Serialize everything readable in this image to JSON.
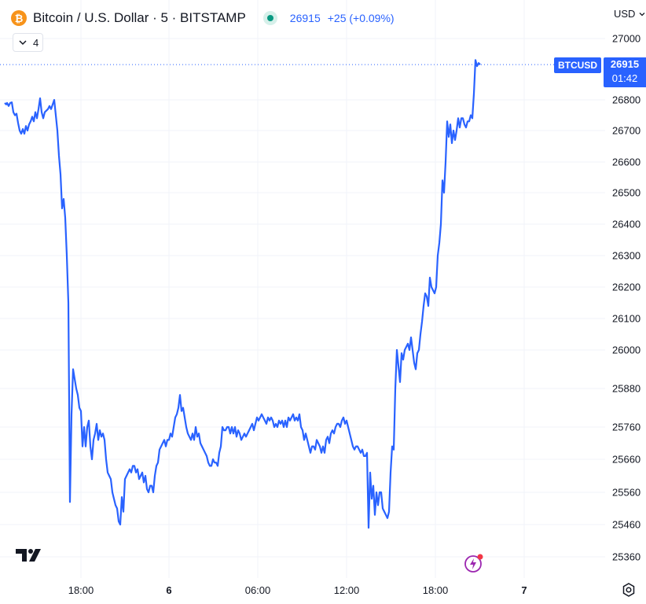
{
  "header": {
    "coin_symbol": "₿",
    "title": "Bitcoin / U.S. Dollar · 5 · BITSTAMP",
    "last_price": "26915",
    "change": "+25 (+0.09%)",
    "indicators_count": "4"
  },
  "currency_selector": "USD",
  "price_tag": {
    "symbol": "BTCUSD",
    "price": "26915",
    "countdown": "01:42"
  },
  "colors": {
    "line": "#2962ff",
    "grid": "#f0f3fa",
    "live_status": "#089981",
    "coin": "#f7931a"
  },
  "icons": [
    "bitcoin-logo-icon",
    "live-status-icon",
    "chevron-down-icon",
    "tradingview-logo-icon",
    "flash-icon",
    "settings-icon"
  ],
  "chart_data": {
    "type": "line",
    "title": "",
    "xlabel": "",
    "ylabel": "",
    "grid": true,
    "x_ticks": [
      "18:00",
      "6",
      "06:00",
      "12:00",
      "18:00",
      "7"
    ],
    "y_ticks": [
      27000,
      26800,
      26700,
      26600,
      26500,
      26400,
      26300,
      26200,
      26100,
      26000,
      25880,
      25760,
      25660,
      25560,
      25460,
      25360
    ],
    "last_price_line": 26915,
    "series": [
      {
        "values": [
          [
            0,
            26790
          ],
          [
            2,
            26785
          ],
          [
            3,
            26790
          ],
          [
            5,
            26780
          ],
          [
            7,
            26790
          ],
          [
            9,
            26792
          ],
          [
            11,
            26760
          ],
          [
            13,
            26750
          ],
          [
            15,
            26755
          ],
          [
            17,
            26725
          ],
          [
            19,
            26700
          ],
          [
            21,
            26690
          ],
          [
            23,
            26705
          ],
          [
            25,
            26690
          ],
          [
            27,
            26715
          ],
          [
            29,
            26700
          ],
          [
            31,
            26720
          ],
          [
            33,
            26730
          ],
          [
            35,
            26745
          ],
          [
            37,
            26730
          ],
          [
            39,
            26760
          ],
          [
            41,
            26740
          ],
          [
            43,
            26770
          ],
          [
            45,
            26805
          ],
          [
            47,
            26760
          ],
          [
            49,
            26740
          ],
          [
            51,
            26760
          ],
          [
            53,
            26765
          ],
          [
            55,
            26770
          ],
          [
            57,
            26780
          ],
          [
            59,
            26770
          ],
          [
            61,
            26785
          ],
          [
            63,
            26800
          ],
          [
            65,
            26750
          ],
          [
            67,
            26700
          ],
          [
            69,
            26620
          ],
          [
            71,
            26560
          ],
          [
            73,
            26450
          ],
          [
            75,
            26480
          ],
          [
            77,
            26420
          ],
          [
            79,
            26300
          ],
          [
            81,
            26150
          ],
          [
            83,
            25530
          ],
          [
            85,
            25800
          ],
          [
            87,
            25940
          ],
          [
            89,
            25910
          ],
          [
            91,
            25880
          ],
          [
            93,
            25860
          ],
          [
            95,
            25820
          ],
          [
            97,
            25810
          ],
          [
            99,
            25700
          ],
          [
            101,
            25760
          ],
          [
            103,
            25700
          ],
          [
            105,
            25760
          ],
          [
            107,
            25780
          ],
          [
            109,
            25700
          ],
          [
            111,
            25660
          ],
          [
            113,
            25720
          ],
          [
            115,
            25740
          ],
          [
            117,
            25770
          ],
          [
            119,
            25720
          ],
          [
            121,
            25750
          ],
          [
            123,
            25730
          ],
          [
            125,
            25740
          ],
          [
            127,
            25720
          ],
          [
            129,
            25660
          ],
          [
            131,
            25620
          ],
          [
            133,
            25610
          ],
          [
            135,
            25600
          ],
          [
            137,
            25560
          ],
          [
            139,
            25540
          ],
          [
            141,
            25520
          ],
          [
            143,
            25510
          ],
          [
            145,
            25470
          ],
          [
            147,
            25460
          ],
          [
            149,
            25545
          ],
          [
            151,
            25500
          ],
          [
            153,
            25600
          ],
          [
            155,
            25610
          ],
          [
            157,
            25620
          ],
          [
            159,
            25630
          ],
          [
            161,
            25620
          ],
          [
            163,
            25640
          ],
          [
            165,
            25640
          ],
          [
            167,
            25620
          ],
          [
            169,
            25630
          ],
          [
            171,
            25600
          ],
          [
            173,
            25610
          ],
          [
            175,
            25620
          ],
          [
            177,
            25590
          ],
          [
            179,
            25610
          ],
          [
            181,
            25570
          ],
          [
            183,
            25560
          ],
          [
            185,
            25580
          ],
          [
            187,
            25580
          ],
          [
            189,
            25560
          ],
          [
            191,
            25610
          ],
          [
            193,
            25640
          ],
          [
            195,
            25650
          ],
          [
            197,
            25690
          ],
          [
            199,
            25700
          ],
          [
            201,
            25710
          ],
          [
            203,
            25720
          ],
          [
            205,
            25700
          ],
          [
            207,
            25720
          ],
          [
            209,
            25720
          ],
          [
            211,
            25740
          ],
          [
            213,
            25730
          ],
          [
            215,
            25760
          ],
          [
            217,
            25790
          ],
          [
            219,
            25800
          ],
          [
            221,
            25820
          ],
          [
            223,
            25860
          ],
          [
            225,
            25810
          ],
          [
            227,
            25820
          ],
          [
            229,
            25790
          ],
          [
            231,
            25760
          ],
          [
            233,
            25740
          ],
          [
            235,
            25730
          ],
          [
            237,
            25720
          ],
          [
            239,
            25740
          ],
          [
            241,
            25720
          ],
          [
            243,
            25760
          ],
          [
            245,
            25730
          ],
          [
            247,
            25740
          ],
          [
            249,
            25710
          ],
          [
            251,
            25700
          ],
          [
            253,
            25690
          ],
          [
            255,
            25680
          ],
          [
            257,
            25670
          ],
          [
            259,
            25650
          ],
          [
            261,
            25640
          ],
          [
            263,
            25640
          ],
          [
            265,
            25660
          ],
          [
            267,
            25650
          ],
          [
            269,
            25650
          ],
          [
            271,
            25640
          ],
          [
            273,
            25680
          ],
          [
            275,
            25700
          ],
          [
            277,
            25760
          ],
          [
            279,
            25750
          ],
          [
            281,
            25750
          ],
          [
            283,
            25760
          ],
          [
            285,
            25760
          ],
          [
            287,
            25740
          ],
          [
            289,
            25760
          ],
          [
            291,
            25740
          ],
          [
            293,
            25760
          ],
          [
            295,
            25730
          ],
          [
            297,
            25750
          ],
          [
            299,
            25740
          ],
          [
            301,
            25720
          ],
          [
            303,
            25730
          ],
          [
            305,
            25740
          ],
          [
            307,
            25730
          ],
          [
            309,
            25740
          ],
          [
            311,
            25750
          ],
          [
            313,
            25760
          ],
          [
            315,
            25770
          ],
          [
            317,
            25750
          ],
          [
            319,
            25770
          ],
          [
            321,
            25790
          ],
          [
            323,
            25780
          ],
          [
            325,
            25790
          ],
          [
            327,
            25800
          ],
          [
            329,
            25790
          ],
          [
            331,
            25780
          ],
          [
            333,
            25770
          ],
          [
            335,
            25790
          ],
          [
            337,
            25780
          ],
          [
            339,
            25790
          ],
          [
            341,
            25780
          ],
          [
            343,
            25760
          ],
          [
            345,
            25770
          ],
          [
            347,
            25760
          ],
          [
            349,
            25780
          ],
          [
            351,
            25770
          ],
          [
            353,
            25780
          ],
          [
            355,
            25760
          ],
          [
            357,
            25780
          ],
          [
            359,
            25760
          ],
          [
            361,
            25790
          ],
          [
            363,
            25780
          ],
          [
            365,
            25790
          ],
          [
            367,
            25800
          ],
          [
            369,
            25780
          ],
          [
            371,
            25790
          ],
          [
            373,
            25780
          ],
          [
            375,
            25800
          ],
          [
            377,
            25760
          ],
          [
            379,
            25750
          ],
          [
            381,
            25720
          ],
          [
            383,
            25740
          ],
          [
            385,
            25720
          ],
          [
            387,
            25700
          ],
          [
            389,
            25680
          ],
          [
            391,
            25700
          ],
          [
            393,
            25700
          ],
          [
            395,
            25690
          ],
          [
            397,
            25720
          ],
          [
            399,
            25710
          ],
          [
            401,
            25700
          ],
          [
            403,
            25680
          ],
          [
            405,
            25700
          ],
          [
            407,
            25680
          ],
          [
            409,
            25720
          ],
          [
            411,
            25730
          ],
          [
            413,
            25710
          ],
          [
            415,
            25740
          ],
          [
            417,
            25750
          ],
          [
            419,
            25740
          ],
          [
            421,
            25760
          ],
          [
            423,
            25770
          ],
          [
            425,
            25770
          ],
          [
            427,
            25760
          ],
          [
            429,
            25780
          ],
          [
            431,
            25790
          ],
          [
            433,
            25770
          ],
          [
            435,
            25780
          ],
          [
            437,
            25760
          ],
          [
            439,
            25740
          ],
          [
            441,
            25720
          ],
          [
            443,
            25700
          ],
          [
            445,
            25690
          ],
          [
            447,
            25700
          ],
          [
            449,
            25700
          ],
          [
            451,
            25690
          ],
          [
            453,
            25680
          ],
          [
            455,
            25690
          ],
          [
            457,
            25670
          ],
          [
            459,
            25670
          ],
          [
            461,
            25680
          ],
          [
            463,
            25450
          ],
          [
            465,
            25620
          ],
          [
            467,
            25540
          ],
          [
            469,
            25580
          ],
          [
            471,
            25490
          ],
          [
            473,
            25560
          ],
          [
            475,
            25520
          ],
          [
            477,
            25560
          ],
          [
            479,
            25560
          ],
          [
            481,
            25510
          ],
          [
            483,
            25500
          ],
          [
            485,
            25490
          ],
          [
            487,
            25480
          ],
          [
            489,
            25500
          ],
          [
            491,
            25620
          ],
          [
            493,
            25700
          ],
          [
            495,
            25690
          ],
          [
            497,
            25880
          ],
          [
            499,
            26000
          ],
          [
            501,
            25950
          ],
          [
            503,
            25900
          ],
          [
            505,
            25990
          ],
          [
            507,
            25970
          ],
          [
            509,
            26000
          ],
          [
            511,
            26010
          ],
          [
            513,
            26020
          ],
          [
            515,
            26000
          ],
          [
            517,
            26040
          ],
          [
            519,
            26000
          ],
          [
            521,
            25960
          ],
          [
            523,
            25940
          ],
          [
            525,
            25990
          ],
          [
            527,
            26000
          ],
          [
            529,
            26050
          ],
          [
            531,
            26090
          ],
          [
            533,
            26140
          ],
          [
            535,
            26180
          ],
          [
            537,
            26170
          ],
          [
            539,
            26140
          ],
          [
            541,
            26230
          ],
          [
            543,
            26200
          ],
          [
            545,
            26190
          ],
          [
            547,
            26180
          ],
          [
            549,
            26200
          ],
          [
            551,
            26300
          ],
          [
            553,
            26340
          ],
          [
            555,
            26400
          ],
          [
            557,
            26540
          ],
          [
            559,
            26500
          ],
          [
            561,
            26600
          ],
          [
            563,
            26730
          ],
          [
            565,
            26680
          ],
          [
            567,
            26720
          ],
          [
            569,
            26660
          ],
          [
            571,
            26700
          ],
          [
            573,
            26670
          ],
          [
            575,
            26700
          ],
          [
            577,
            26740
          ],
          [
            579,
            26710
          ],
          [
            581,
            26740
          ],
          [
            583,
            26740
          ],
          [
            585,
            26720
          ],
          [
            587,
            26710
          ],
          [
            589,
            26730
          ],
          [
            591,
            26730
          ],
          [
            593,
            26750
          ],
          [
            595,
            26740
          ],
          [
            597,
            26820
          ],
          [
            599,
            26930
          ],
          [
            601,
            26910
          ],
          [
            603,
            26920
          ],
          [
            605,
            26915
          ]
        ]
      }
    ]
  }
}
